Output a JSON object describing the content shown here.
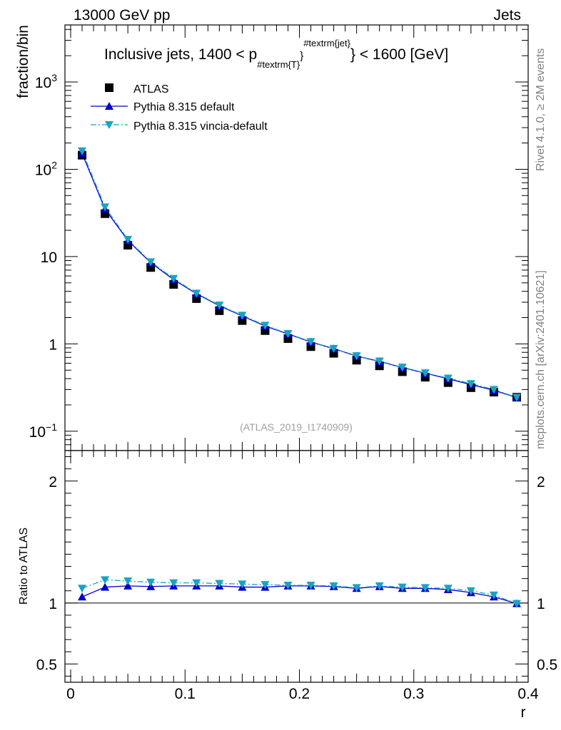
{
  "chart_data": [
    {
      "type": "scatter",
      "panel": "main",
      "title": "Inclusive jets, 1400 < p_{#textrm{T}}^{#textrm{jet}} < 1600 [GeV]",
      "title_parts": {
        "prefix": "Inclusive jets, 1400 < p",
        "subscript": "#textrm{T}",
        "sub_close": "}",
        "superscript": "#textrm{jet}",
        "suffix": "} < 1600 [GeV]"
      },
      "top_left_label": "13000 GeV pp",
      "top_right_label": "Jets",
      "ylabel": "fraction/bin",
      "yscale": "log",
      "ylim": [
        0.06,
        4500
      ],
      "xlim": [
        -0.005,
        0.4
      ],
      "ytick_labels": [
        {
          "value": 0.1,
          "base": "10",
          "exp": "−1"
        },
        {
          "value": 1,
          "base": "1",
          "exp": ""
        },
        {
          "value": 10,
          "base": "10",
          "exp": ""
        },
        {
          "value": 100,
          "base": "10",
          "exp": "2"
        },
        {
          "value": 1000,
          "base": "10",
          "exp": "3"
        }
      ],
      "x": [
        0.01,
        0.03,
        0.05,
        0.07,
        0.09,
        0.11,
        0.13,
        0.15,
        0.17,
        0.19,
        0.21,
        0.23,
        0.25,
        0.27,
        0.29,
        0.31,
        0.33,
        0.35,
        0.37,
        0.39
      ],
      "series": [
        {
          "name": "ATLAS",
          "marker": "square",
          "color": "#000000",
          "values": [
            145,
            31,
            13.5,
            7.5,
            4.8,
            3.3,
            2.4,
            1.85,
            1.42,
            1.15,
            0.93,
            0.78,
            0.65,
            0.56,
            0.48,
            0.415,
            0.36,
            0.315,
            0.28,
            0.245
          ]
        },
        {
          "name": "Pythia 8.315 default",
          "marker": "triangle-up",
          "color": "#0000cc",
          "line": "solid",
          "values": [
            152,
            35,
            15.3,
            8.5,
            5.45,
            3.75,
            2.73,
            2.09,
            1.6,
            1.3,
            1.05,
            0.88,
            0.725,
            0.63,
            0.535,
            0.462,
            0.398,
            0.342,
            0.294,
            0.243
          ]
        },
        {
          "name": "Pythia 8.315 vincia-default",
          "marker": "triangle-down",
          "color": "#1aa3c2",
          "line": "dashdot",
          "values": [
            162,
            37,
            15.7,
            8.7,
            5.6,
            3.8,
            2.78,
            2.12,
            1.63,
            1.31,
            1.06,
            0.885,
            0.73,
            0.635,
            0.54,
            0.465,
            0.405,
            0.35,
            0.3,
            0.244
          ]
        }
      ],
      "legend_position": "top-left",
      "annotation": "(ATLAS_2019_I1740909)"
    },
    {
      "type": "line",
      "panel": "ratio",
      "ylabel": "Ratio to ATLAS",
      "xlabel": "r",
      "ylim": [
        0.35,
        2.25
      ],
      "xlim": [
        -0.005,
        0.4
      ],
      "ytick_labels": [
        {
          "value": 0.5,
          "label": "0.5"
        },
        {
          "value": 1,
          "label": "1"
        },
        {
          "value": 2,
          "label": "2"
        }
      ],
      "xtick_labels": [
        {
          "value": 0,
          "label": "0"
        },
        {
          "value": 0.1,
          "label": "0.1"
        },
        {
          "value": 0.2,
          "label": "0.2"
        },
        {
          "value": 0.3,
          "label": "0.3"
        },
        {
          "value": 0.4,
          "label": "0.4"
        }
      ],
      "x": [
        0.01,
        0.03,
        0.05,
        0.07,
        0.09,
        0.11,
        0.13,
        0.15,
        0.17,
        0.19,
        0.21,
        0.23,
        0.25,
        0.27,
        0.29,
        0.31,
        0.33,
        0.35,
        0.37,
        0.39
      ],
      "series": [
        {
          "name": "Pythia 8.315 default",
          "marker": "triangle-up",
          "color": "#0000cc",
          "line": "solid",
          "values": [
            1.05,
            1.13,
            1.14,
            1.135,
            1.14,
            1.14,
            1.14,
            1.13,
            1.13,
            1.14,
            1.14,
            1.135,
            1.12,
            1.135,
            1.12,
            1.12,
            1.11,
            1.085,
            1.05,
            0.995
          ]
        },
        {
          "name": "Pythia 8.315 vincia-default",
          "marker": "triangle-down",
          "color": "#1aa3c2",
          "line": "dashdot",
          "values": [
            1.12,
            1.19,
            1.18,
            1.17,
            1.165,
            1.165,
            1.16,
            1.155,
            1.15,
            1.145,
            1.145,
            1.14,
            1.125,
            1.14,
            1.13,
            1.125,
            1.12,
            1.1,
            1.065,
            0.995
          ]
        }
      ],
      "reference_line": 1
    }
  ],
  "side_labels": {
    "rivet": "Rivet 4.1.0, ≥ 2M events",
    "mcplots": "mcplots.cern.ch [arXiv:2401.10621]"
  }
}
